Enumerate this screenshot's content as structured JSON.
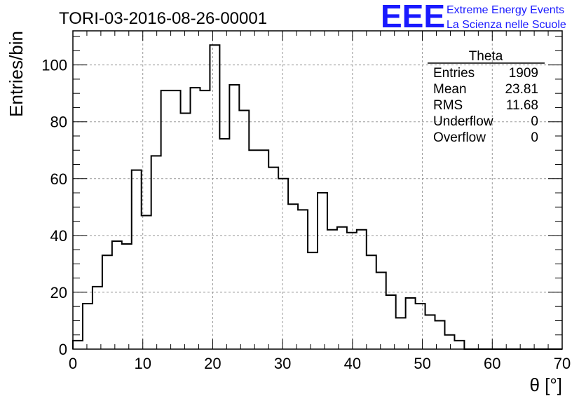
{
  "chart_data": {
    "type": "histogram",
    "title": "TORI-03-2016-08-26-00001",
    "xlabel": "θ [°]",
    "ylabel": "Entries/bin",
    "xlim": [
      0,
      70
    ],
    "ylim": [
      0,
      112
    ],
    "grid": true,
    "bin_width": 1.4,
    "x_ticks": [
      0,
      10,
      20,
      30,
      40,
      50,
      60,
      70
    ],
    "y_ticks": [
      0,
      20,
      40,
      60,
      80,
      100
    ],
    "values": [
      3,
      16,
      22,
      33,
      38,
      37,
      63,
      47,
      68,
      91,
      91,
      83,
      92,
      91,
      107,
      74,
      93,
      84,
      70,
      70,
      64,
      60,
      51,
      49,
      34,
      55,
      42,
      43,
      41,
      42,
      33,
      27,
      19,
      11,
      18,
      16,
      12,
      10,
      5,
      3,
      0,
      0,
      0,
      0,
      0,
      0,
      0,
      0,
      0,
      0
    ],
    "stats": {
      "title": "Theta",
      "rows": [
        {
          "label": "Entries",
          "value": "1909"
        },
        {
          "label": "Mean",
          "value": "23.81"
        },
        {
          "label": "RMS",
          "value": "11.68"
        },
        {
          "label": "Underflow",
          "value": "0"
        },
        {
          "label": "Overflow",
          "value": "0"
        }
      ]
    }
  },
  "logo": {
    "text": "EEE",
    "line1": "Extreme Energy Events",
    "line2": "La Scienza nelle Scuole",
    "color": "#1a1aff"
  }
}
